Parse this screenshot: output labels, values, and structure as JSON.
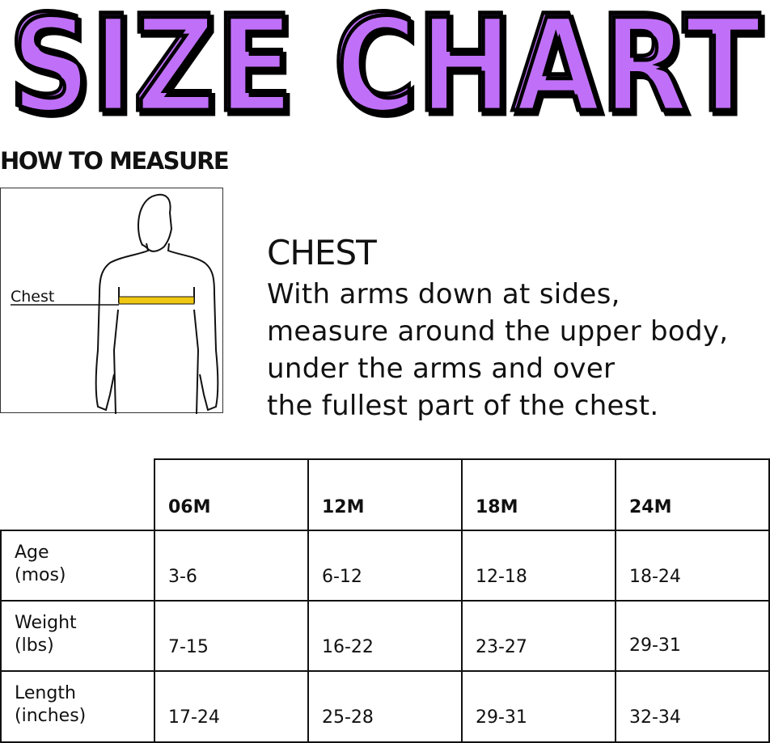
{
  "title": "SIZE CHART",
  "colors": {
    "title_fill": "#c070f8",
    "tape": "#f0c814"
  },
  "how_to_measure": "HOW TO MEASURE",
  "figure_label": "Chest",
  "chest": {
    "heading": "CHEST",
    "lines": [
      "With arms down at sides,",
      "measure around the upper body,",
      "under the arms and over",
      "the fullest part of the chest."
    ]
  },
  "table": {
    "columns": [
      "06M",
      "12M",
      "18M",
      "24M"
    ],
    "rows": [
      {
        "label": [
          "Age",
          "(mos)"
        ],
        "values": [
          "3-6",
          "6-12",
          "12-18",
          "18-24"
        ]
      },
      {
        "label": [
          "Weight",
          "(lbs)"
        ],
        "values": [
          "7-15",
          "16-22",
          "23-27",
          "29-31"
        ]
      },
      {
        "label": [
          "Length",
          "(inches)"
        ],
        "values": [
          "17-24",
          "25-28",
          "29-31",
          "32-34"
        ]
      }
    ]
  }
}
